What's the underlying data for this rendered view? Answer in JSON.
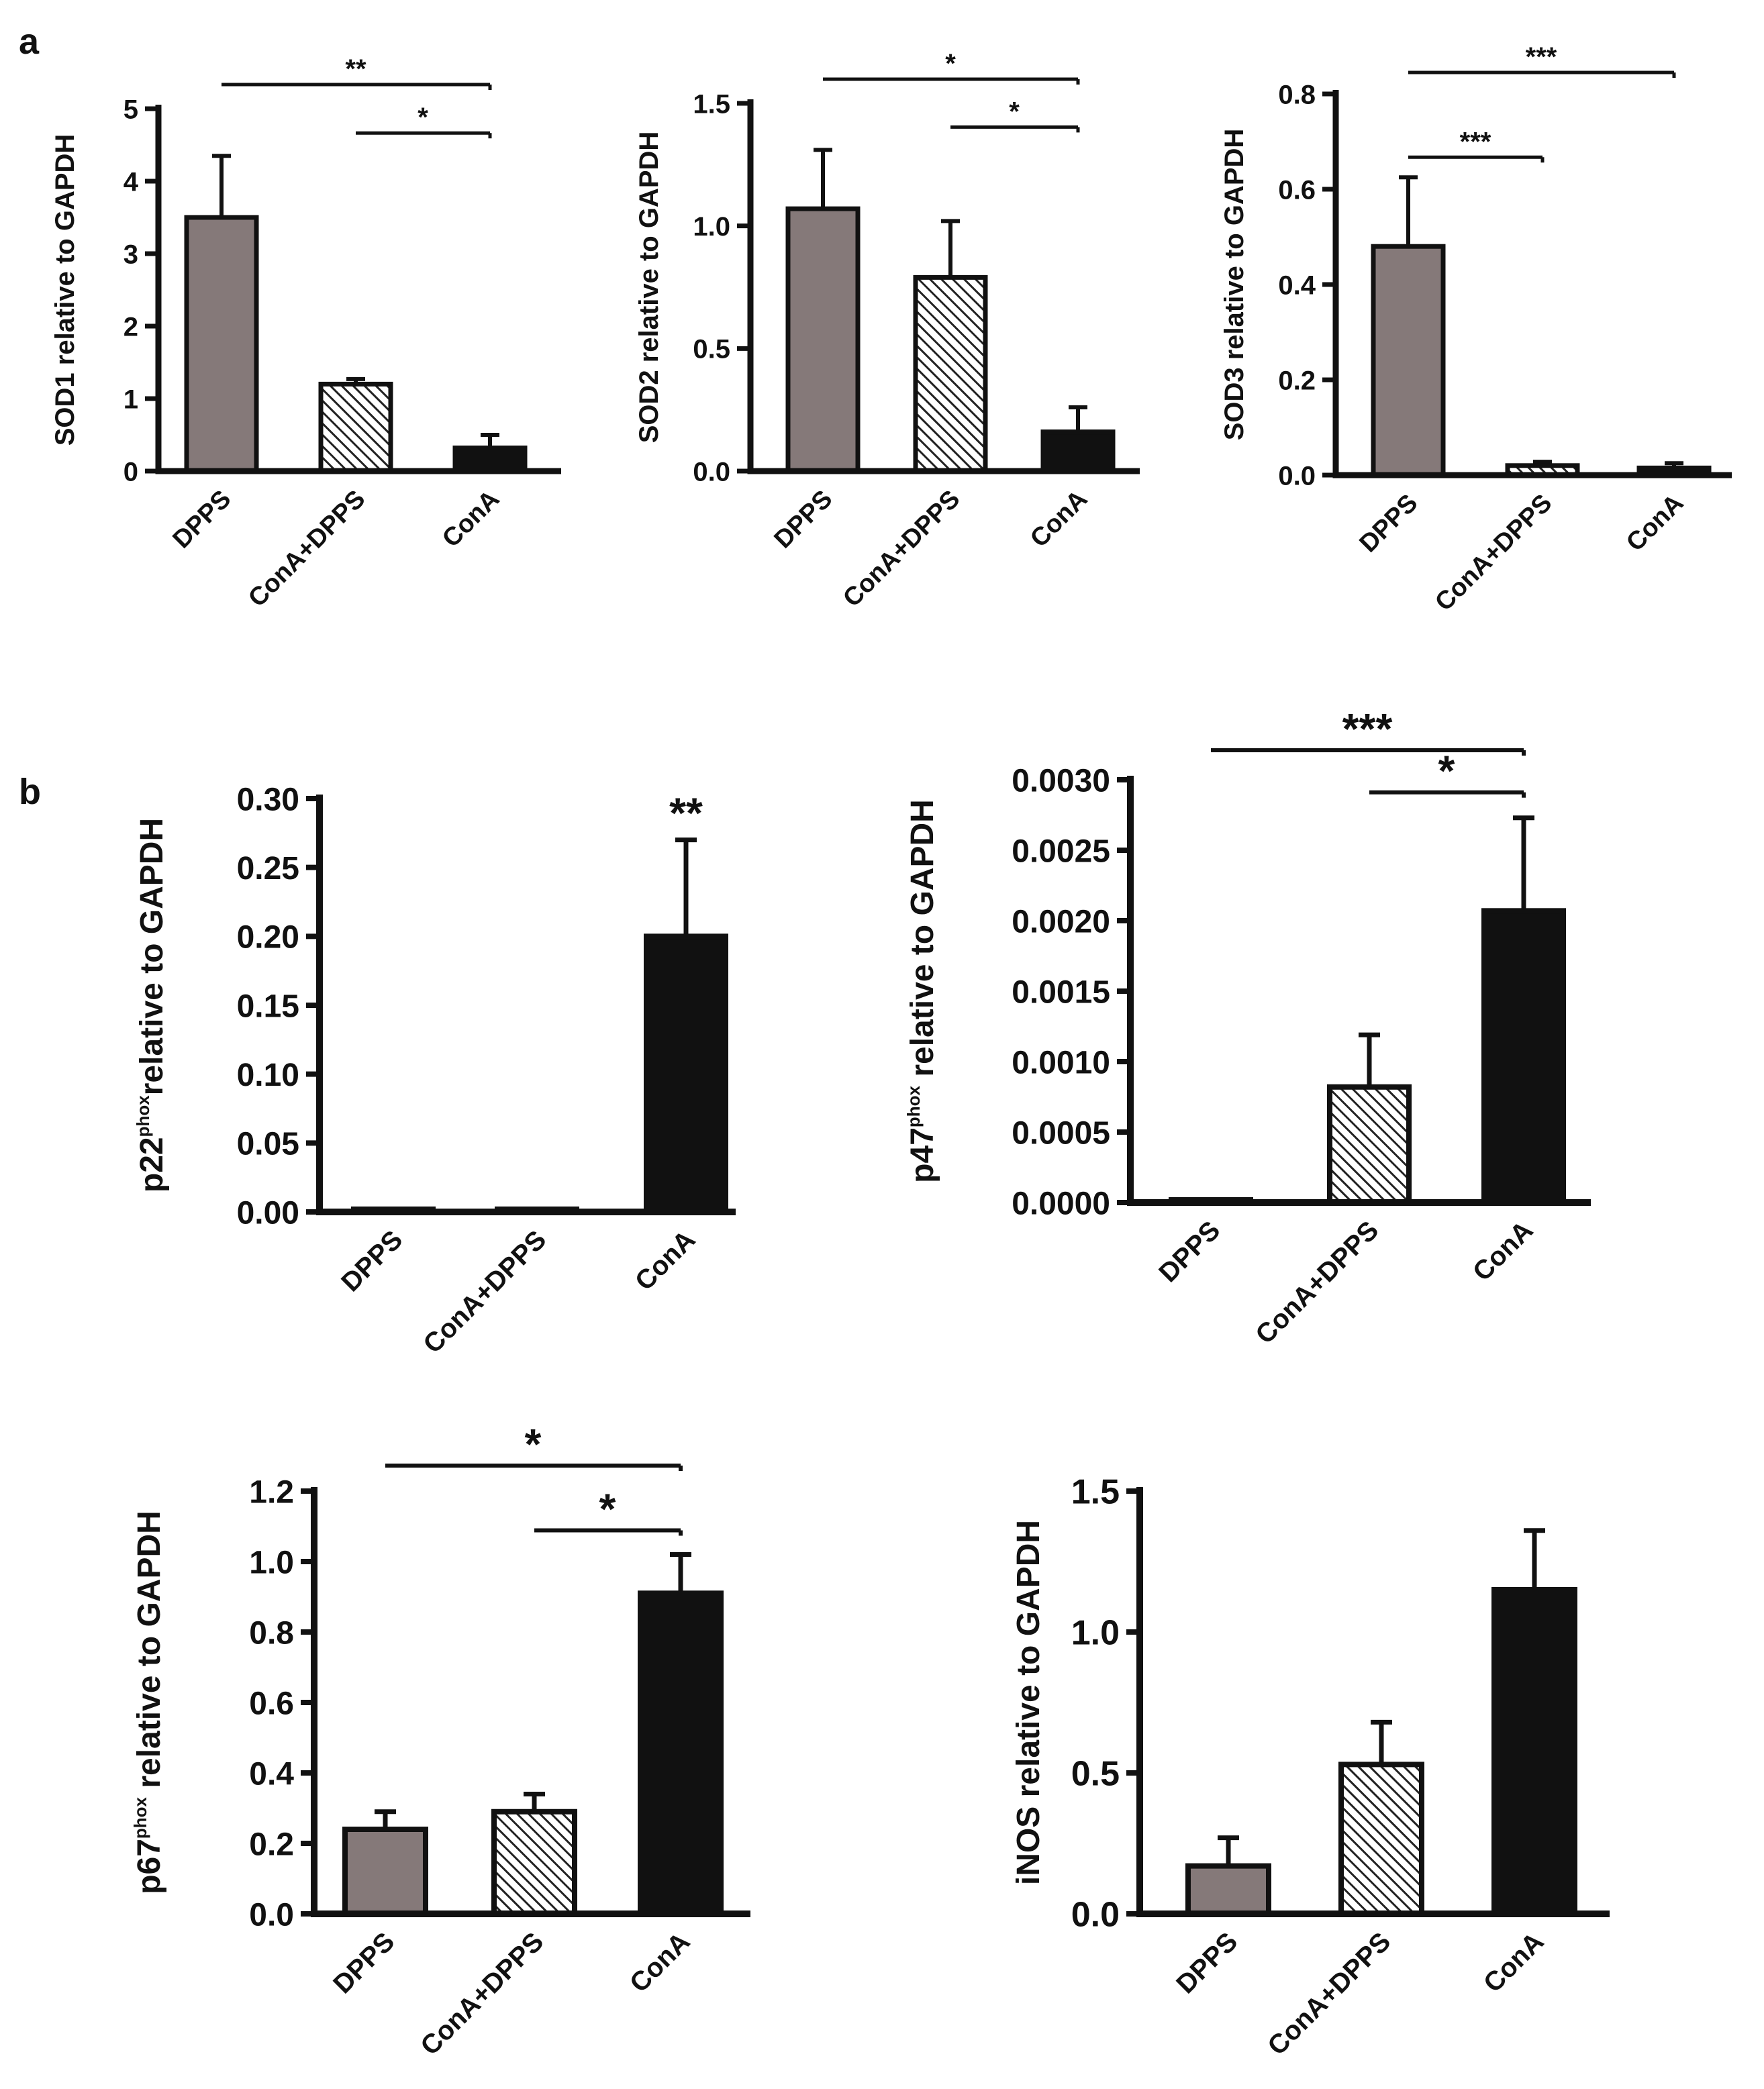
{
  "figure": {
    "panel_labels": [
      "a",
      "b"
    ]
  },
  "colors": {
    "dpps": "#857979",
    "conadpps": "#ffffff",
    "cona": "#111111",
    "axis": "#111111",
    "hatch": "#222222"
  },
  "chart_data": [
    {
      "type": "bar",
      "panel": "a",
      "categories": [
        "DPPS",
        "ConA+DPPS",
        "ConA"
      ],
      "values": [
        3.5,
        1.2,
        0.32
      ],
      "errors": [
        0.85,
        0.07,
        0.18
      ],
      "ylabel": "SOD1 relative to GAPDH",
      "ylim": [
        0,
        5
      ],
      "yticks": [
        0,
        1,
        2,
        3,
        4,
        5
      ],
      "ytick_labels": [
        "0",
        "1",
        "2",
        "3",
        "4",
        "5"
      ],
      "significance": [
        {
          "from": 0,
          "to": 2,
          "label": "**"
        },
        {
          "from": 1,
          "to": 2,
          "label": "*"
        }
      ]
    },
    {
      "type": "bar",
      "panel": "a",
      "categories": [
        "DPPS",
        "ConA+DPPS",
        "ConA"
      ],
      "values": [
        1.07,
        0.79,
        0.16
      ],
      "errors": [
        0.24,
        0.23,
        0.1
      ],
      "ylabel": "SOD2 relative to GAPDH",
      "ylim": [
        0,
        1.5
      ],
      "yticks": [
        0,
        0.5,
        1.0,
        1.5
      ],
      "ytick_labels": [
        "0.0",
        "0.5",
        "1.0",
        "1.5"
      ],
      "significance": [
        {
          "from": 0,
          "to": 2,
          "label": "*"
        },
        {
          "from": 1,
          "to": 2,
          "label": "*"
        }
      ]
    },
    {
      "type": "bar",
      "panel": "a",
      "categories": [
        "DPPS",
        "ConA+DPPS",
        "ConA"
      ],
      "values": [
        0.48,
        0.02,
        0.015
      ],
      "errors": [
        0.145,
        0.008,
        0.01
      ],
      "ylabel": "SOD3 relative to GAPDH",
      "ylim": [
        0,
        0.8
      ],
      "yticks": [
        0,
        0.2,
        0.4,
        0.6,
        0.8
      ],
      "ytick_labels": [
        "0.0",
        "0.2",
        "0.4",
        "0.6",
        "0.8"
      ],
      "significance": [
        {
          "from": 0,
          "to": 2,
          "label": "***"
        },
        {
          "from": 0,
          "to": 1,
          "label": "***"
        }
      ]
    },
    {
      "type": "bar",
      "panel": "b",
      "categories": [
        "DPPS",
        "ConA+DPPS",
        "ConA"
      ],
      "values": [
        0.002,
        0.002,
        0.2
      ],
      "errors": [
        0,
        0,
        0.07
      ],
      "ylabel": "p22phoxrelative to GAPDH",
      "ylabel_parts": {
        "base": "p22",
        "sup": "phox",
        "rest": "relative to GAPDH"
      },
      "ylim": [
        0,
        0.3
      ],
      "yticks": [
        0,
        0.05,
        0.1,
        0.15,
        0.2,
        0.25,
        0.3
      ],
      "ytick_labels": [
        "0.00",
        "0.05",
        "0.10",
        "0.15",
        "0.20",
        "0.25",
        "0.30"
      ],
      "significance": [
        {
          "bar": 2,
          "label": "**"
        }
      ]
    },
    {
      "type": "bar",
      "panel": "b",
      "categories": [
        "DPPS",
        "ConA+DPPS",
        "ConA"
      ],
      "values": [
        1e-05,
        0.00082,
        0.00207
      ],
      "errors": [
        0,
        0.00037,
        0.00066
      ],
      "ylabel": "p47phox relative to GAPDH",
      "ylabel_parts": {
        "base": "p47",
        "sup": "phox",
        "rest": " relative to GAPDH"
      },
      "ylim": [
        0,
        0.003
      ],
      "yticks": [
        0,
        0.0005,
        0.001,
        0.0015,
        0.002,
        0.0025,
        0.003
      ],
      "ytick_labels": [
        "0.0000",
        "0.0005",
        "0.0010",
        "0.0015",
        "0.0020",
        "0.0025",
        "0.0030"
      ],
      "significance": [
        {
          "from": 0,
          "to": 2,
          "label": "***"
        },
        {
          "from": 1,
          "to": 2,
          "label": "*"
        }
      ]
    },
    {
      "type": "bar",
      "panel": "b",
      "categories": [
        "DPPS",
        "ConA+DPPS",
        "ConA"
      ],
      "values": [
        0.24,
        0.29,
        0.91
      ],
      "errors": [
        0.05,
        0.05,
        0.11
      ],
      "ylabel": "p67phox relative to GAPDH",
      "ylabel_parts": {
        "base": "p67",
        "sup": "phox",
        "rest": " relative to GAPDH"
      },
      "ylim": [
        0,
        1.2
      ],
      "yticks": [
        0,
        0.2,
        0.4,
        0.6,
        0.8,
        1.0,
        1.2
      ],
      "ytick_labels": [
        "0.0",
        "0.2",
        "0.4",
        "0.6",
        "0.8",
        "1.0",
        "1.2"
      ],
      "significance": [
        {
          "from": 0,
          "to": 2,
          "label": "*"
        },
        {
          "from": 1,
          "to": 2,
          "label": "*"
        }
      ]
    },
    {
      "type": "bar",
      "panel": "b",
      "categories": [
        "DPPS",
        "ConA+DPPS",
        "ConA"
      ],
      "values": [
        0.17,
        0.53,
        1.15
      ],
      "errors": [
        0.1,
        0.15,
        0.21
      ],
      "ylabel": "iNOS relative to GAPDH",
      "ylim": [
        0,
        1.5
      ],
      "yticks": [
        0,
        0.5,
        1.0,
        1.5
      ],
      "ytick_labels": [
        "0.0",
        "0.5",
        "1.0",
        "1.5"
      ],
      "significance": []
    }
  ]
}
